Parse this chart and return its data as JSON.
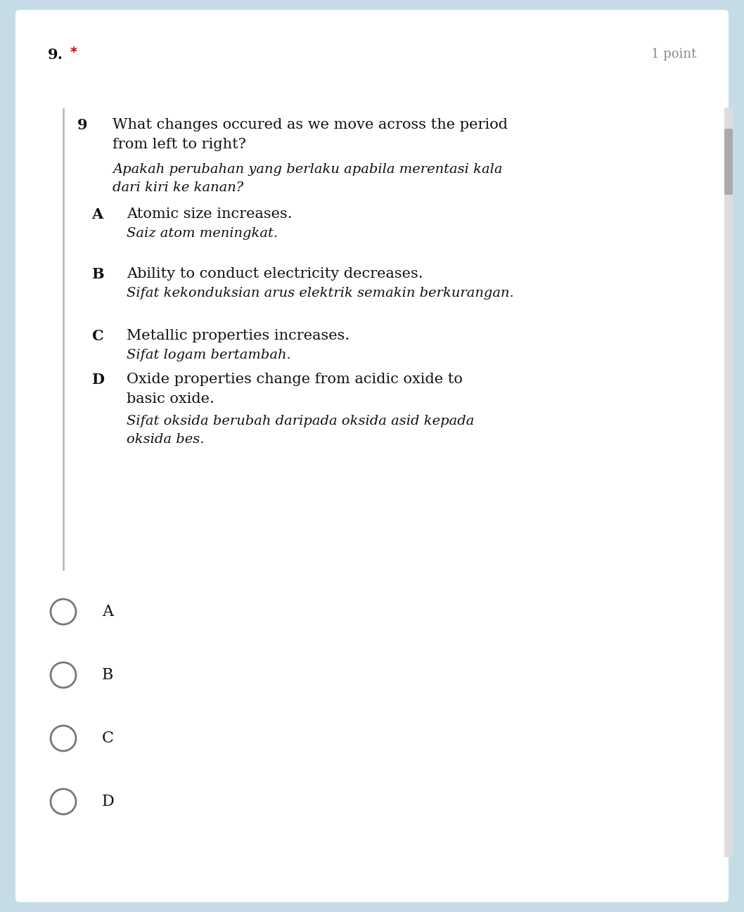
{
  "bg_outer": "#c5dce6",
  "bg_card": "#ffffff",
  "asterisk_color": "#cc0000",
  "points_color": "#888888",
  "text_color": "#111111",
  "line_color": "#bbbbbb",
  "circle_color": "#777777",
  "question_number_label": "9.",
  "asterisk": "*",
  "points_text": "1 point",
  "q_num": "9",
  "question_en_line1": "What changes occured as we move across the period",
  "question_en_line2": "from left to right?",
  "question_ms_line1": "Apakah perubahan yang berlaku apabila merentasi kala",
  "question_ms_line2": "dari kiri ke kanan?",
  "options": [
    {
      "letter": "A",
      "en": "Atomic size increases.",
      "ms": "Saiz atom meningkat.",
      "en_lines": 1,
      "ms_lines": 1
    },
    {
      "letter": "B",
      "en": "Ability to conduct electricity decreases.",
      "ms": "Sifat kekonduksian arus elektrik semakin berkurangan.",
      "en_lines": 1,
      "ms_lines": 1
    },
    {
      "letter": "C",
      "en": "Metallic properties increases.",
      "ms": "Sifat logam bertambah.",
      "en_lines": 1,
      "ms_lines": 1
    },
    {
      "letter": "D",
      "en": "Oxide properties change from acidic oxide to\nbasic oxide.",
      "ms": "Sifat oksida berubah daripada oksida asid kepada\noksida bes.",
      "en_lines": 2,
      "ms_lines": 2
    }
  ],
  "radio_labels": [
    "A",
    "B",
    "C",
    "D"
  ],
  "fig_width": 10.58,
  "fig_height": 12.97,
  "dpi": 100
}
